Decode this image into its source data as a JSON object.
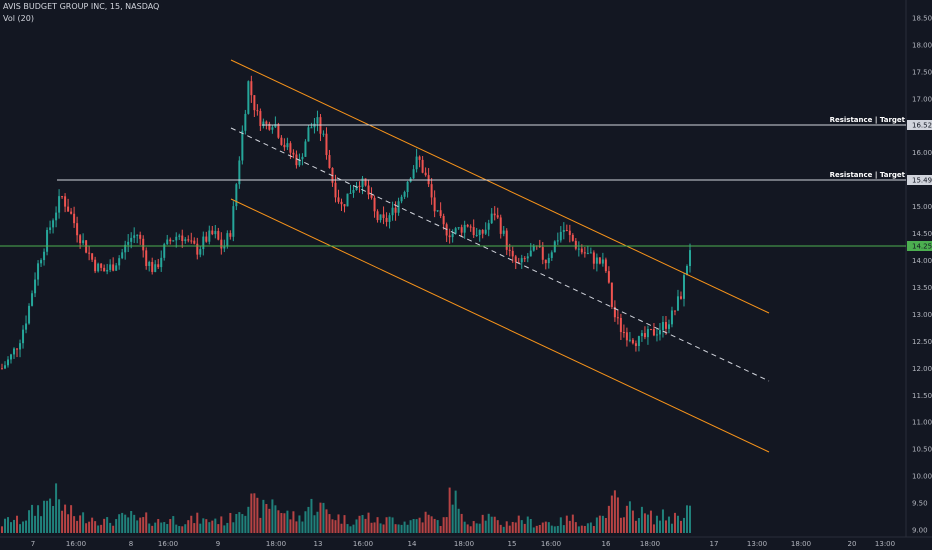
{
  "header": {
    "title": "AVIS BUDGET GROUP INC, 15, NASDAQ",
    "volume_label": "Vol (20)"
  },
  "colors": {
    "background": "#131722",
    "up": "#26a69a",
    "down": "#ef5350",
    "channel": "#f7931a",
    "resistance": "#d1d4dc",
    "current_price": "#4caf50"
  },
  "chart_data": {
    "type": "candlestick",
    "y_axis": {
      "ticks": [
        "18.50",
        "18.00",
        "17.50",
        "17.00",
        "16.50",
        "16.00",
        "15.50",
        "15.00",
        "14.50",
        "14.00",
        "13.50",
        "13.00",
        "12.50",
        "12.00",
        "11.50",
        "11.00",
        "10.50",
        "10.00",
        "9.50",
        "9.00"
      ]
    },
    "x_axis": {
      "ticks": [
        "7",
        "16:00",
        "8",
        "16:00",
        "9",
        "18:00",
        "13",
        "16:00",
        "14",
        "18:00",
        "15",
        "16:00",
        "16",
        "18:00",
        "17",
        "13:00",
        "18:00",
        "20",
        "13:00"
      ]
    },
    "channel": {
      "upper": [
        [
          17.75
        ],
        [
          13.0
        ]
      ],
      "start_index": 0
    },
    "resistance_levels": [
      {
        "label": "Resistance | Target",
        "value": 16.52,
        "value_text": "16.52"
      },
      {
        "label": "Resistance | Target",
        "value": 15.49,
        "value_text": "15.49"
      }
    ],
    "current_price": {
      "value": 14.25,
      "value_text": "14.25"
    },
    "price_path": [
      12.0,
      12.2,
      12.5,
      13.0,
      13.8,
      14.3,
      14.8,
      15.2,
      14.9,
      14.5,
      14.2,
      13.9,
      13.8,
      13.9,
      14.1,
      14.4,
      14.5,
      14.0,
      13.8,
      14.2,
      14.4,
      14.5,
      14.3,
      14.2,
      14.4,
      14.5,
      14.2,
      14.6,
      16.0,
      17.3,
      16.7,
      16.5,
      16.6,
      16.2,
      16.0,
      15.8,
      16.4,
      16.6,
      16.2,
      15.4,
      15.0,
      15.3,
      15.5,
      15.3,
      14.8,
      14.7,
      14.9,
      15.2,
      15.6,
      15.9,
      15.5,
      14.9,
      14.6,
      14.5,
      14.6,
      14.7,
      14.4,
      14.6,
      14.9,
      14.5,
      14.0,
      13.9,
      14.1,
      14.2,
      14.0,
      14.3,
      14.6,
      14.4,
      14.2,
      14.1,
      14.0,
      13.9,
      13.0,
      12.7,
      12.6,
      12.5,
      12.6,
      12.7,
      12.8,
      13.0,
      13.4,
      14.25
    ],
    "volume_path": [
      3,
      5,
      4,
      6,
      8,
      10,
      14,
      9,
      7,
      5,
      6,
      5,
      4,
      4,
      5,
      6,
      4,
      5,
      4,
      4,
      5,
      4,
      4,
      5,
      4,
      5,
      4,
      5,
      10,
      11,
      9,
      8,
      12,
      7,
      6,
      5,
      9,
      10,
      8,
      6,
      5,
      4,
      5,
      6,
      4,
      4,
      5,
      4,
      4,
      5,
      6,
      4,
      4,
      16,
      5,
      4,
      5,
      6,
      4,
      3,
      4,
      5,
      4,
      3,
      4,
      3,
      4,
      5,
      4,
      3,
      4,
      5,
      11,
      9,
      8,
      7,
      6,
      5,
      6,
      5,
      7,
      9
    ]
  }
}
